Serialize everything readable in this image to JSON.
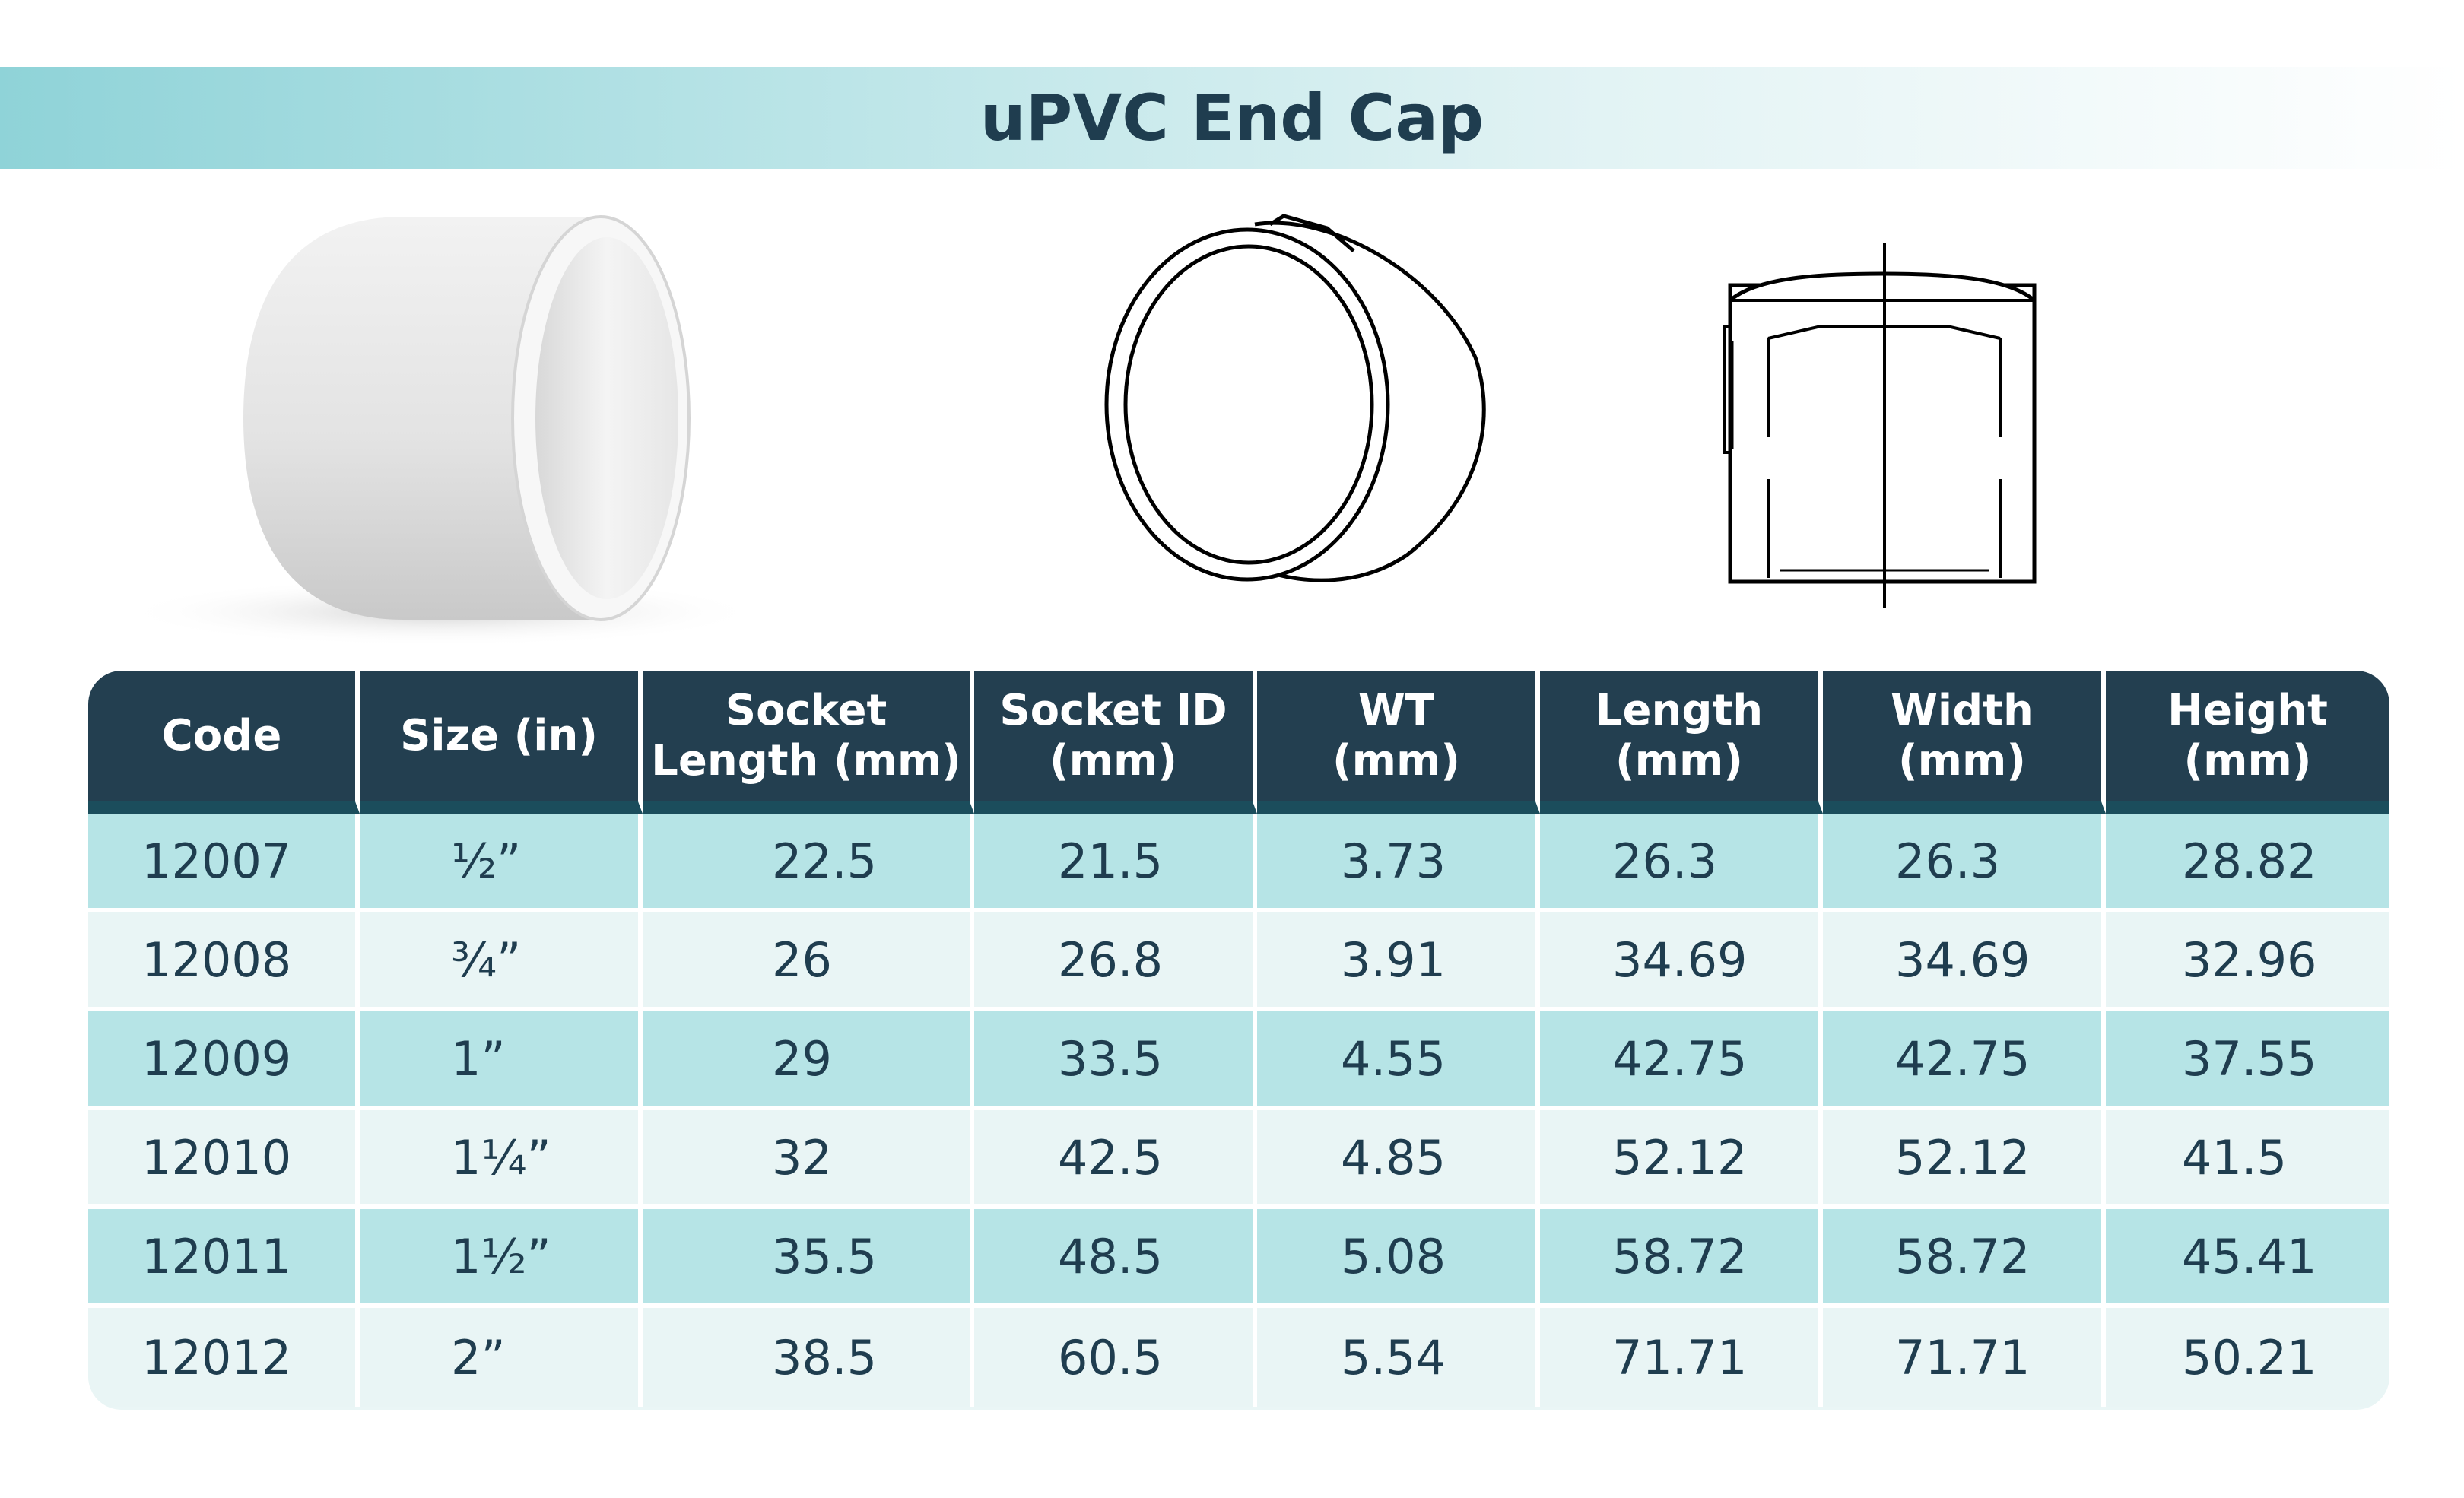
{
  "title": "uPVC End Cap",
  "colors": {
    "header_bg": "#233f50",
    "row_alt": "#b6e4e6",
    "row_light": "#e9f5f5",
    "title_band": "#8fd3d8",
    "text": "#1f3d4f"
  },
  "illustrations": {
    "photo": "end-cap-photo",
    "front_view": "end-cap-front-line-drawing",
    "section_view": "end-cap-cross-section-drawing"
  },
  "table": {
    "headers": [
      "Code",
      "Size (in)",
      "Socket Length (mm)",
      "Socket ID (mm)",
      "WT (mm)",
      "Length (mm)",
      "Width (mm)",
      "Height (mm)"
    ],
    "header_lines": [
      [
        "Code"
      ],
      [
        "Size (in)"
      ],
      [
        "Socket",
        "Length (mm)"
      ],
      [
        "Socket ID",
        "(mm)"
      ],
      [
        "WT",
        "(mm)"
      ],
      [
        "Length",
        "(mm)"
      ],
      [
        "Width",
        "(mm)"
      ],
      [
        "Height",
        "(mm)"
      ]
    ],
    "rows": [
      [
        "12007",
        "½”",
        "22.5",
        "21.5",
        "3.73",
        "26.3",
        "26.3",
        "28.82"
      ],
      [
        "12008",
        "¾”",
        "26",
        "26.8",
        "3.91",
        "34.69",
        "34.69",
        "32.96"
      ],
      [
        "12009",
        "1”",
        "29",
        "33.5",
        "4.55",
        "42.75",
        "42.75",
        "37.55"
      ],
      [
        "12010",
        "1¼”",
        "32",
        "42.5",
        "4.85",
        "52.12",
        "52.12",
        "41.5"
      ],
      [
        "12011",
        "1½”",
        "35.5",
        "48.5",
        "5.08",
        "58.72",
        "58.72",
        "45.41"
      ],
      [
        "12012",
        "2”",
        "38.5",
        "60.5",
        "5.54",
        "71.71",
        "71.71",
        "50.21"
      ]
    ]
  }
}
